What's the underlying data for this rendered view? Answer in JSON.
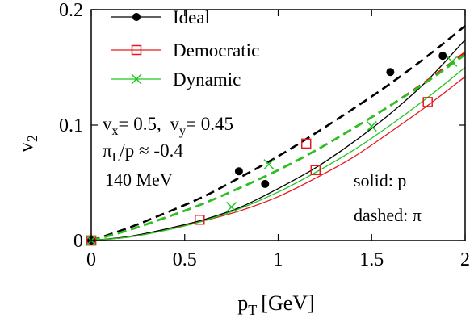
{
  "chart_data": {
    "type": "line",
    "xlabel_main": "p",
    "xlabel_sub": "T",
    "xlabel_unit": "[GeV]",
    "ylabel_main": "v",
    "ylabel_sub": "2",
    "xlim": [
      0,
      2
    ],
    "ylim": [
      0,
      0.2
    ],
    "x_ticks": [
      {
        "value": 0,
        "label": "0"
      },
      {
        "value": 0.5,
        "label": "0.5"
      },
      {
        "value": 1,
        "label": "1"
      },
      {
        "value": 1.5,
        "label": "1.5"
      },
      {
        "value": 2,
        "label": "2"
      }
    ],
    "y_ticks": [
      {
        "value": 0,
        "label": "0"
      },
      {
        "value": 0.1,
        "label": "0.1"
      },
      {
        "value": 0.2,
        "label": "0.2"
      }
    ],
    "legend": [
      {
        "label": "Ideal",
        "color": "#000000",
        "marker": "filled-circle"
      },
      {
        "label": "Democratic",
        "color": "#e8191e",
        "marker": "open-square"
      },
      {
        "label": "Dynamic",
        "color": "#1fc81f",
        "marker": "cross"
      }
    ],
    "annotations": {
      "line1a_main": "v",
      "line1a_sub": "x",
      "line1a_rest": "= 0.5, ",
      "line1b_main": "v",
      "line1b_sub": "y",
      "line1b_rest": "= 0.45",
      "line2_main": "π",
      "line2_sub": "L",
      "line2_rest": "/p ≈ -0.4",
      "line3": "140 MeV",
      "solid": "solid: p",
      "dashed": "dashed: π"
    },
    "series": [
      {
        "color": "#000000",
        "style": "solid",
        "marker": "filled-circle",
        "x": [
          0,
          0.2,
          0.4,
          0.6,
          0.8,
          1.0,
          1.2,
          1.4,
          1.6,
          1.8,
          2.0
        ],
        "y": [
          0,
          0.0035,
          0.01,
          0.018,
          0.029,
          0.045,
          0.063,
          0.085,
          0.11,
          0.139,
          0.174
        ],
        "points_x": [
          0,
          0.93,
          1.6,
          1.88
        ],
        "points_y": [
          0,
          0.049,
          0.146,
          0.16
        ]
      },
      {
        "color": "#e8191e",
        "style": "solid",
        "marker": "open-square",
        "x": [
          0,
          0.2,
          0.4,
          0.6,
          0.8,
          1.0,
          1.2,
          1.4,
          1.6,
          1.8,
          2.0
        ],
        "y": [
          0,
          0.003,
          0.009,
          0.017,
          0.026,
          0.038,
          0.054,
          0.072,
          0.094,
          0.117,
          0.142
        ],
        "points_x": [
          0,
          0.58,
          1.2,
          1.8
        ],
        "points_y": [
          0,
          0.018,
          0.061,
          0.12
        ]
      },
      {
        "color": "#1fc81f",
        "style": "solid",
        "marker": "cross",
        "x": [
          0,
          0.2,
          0.4,
          0.6,
          0.8,
          1.0,
          1.2,
          1.4,
          1.6,
          1.8,
          2.0
        ],
        "y": [
          0,
          0.003,
          0.009,
          0.017,
          0.028,
          0.042,
          0.059,
          0.078,
          0.1,
          0.124,
          0.15
        ],
        "points_x": [
          0,
          0.75,
          1.5
        ],
        "points_y": [
          0,
          0.029,
          0.099
        ]
      },
      {
        "color": "#000000",
        "style": "dashed",
        "marker": "filled-circle",
        "x": [
          0,
          0.2,
          0.4,
          0.6,
          0.8,
          1.0,
          1.2,
          1.4,
          1.6,
          1.8,
          2.0
        ],
        "y": [
          0,
          0.011,
          0.024,
          0.038,
          0.055,
          0.073,
          0.093,
          0.114,
          0.136,
          0.16,
          0.186
        ],
        "points_x": [
          0,
          0.79
        ],
        "points_y": [
          0,
          0.06
        ]
      },
      {
        "color": "#e8191e",
        "style": "dashed",
        "marker": "open-square",
        "x": [
          0,
          0.2,
          0.4,
          0.6,
          0.8,
          1.0,
          1.2,
          1.4,
          1.6,
          1.8,
          2.0
        ],
        "y": [
          0,
          0.009,
          0.02,
          0.032,
          0.046,
          0.061,
          0.078,
          0.097,
          0.117,
          0.139,
          0.163
        ],
        "points_x": [
          0,
          1.15
        ],
        "points_y": [
          0,
          0.084
        ]
      },
      {
        "color": "#1fc81f",
        "style": "dashed",
        "marker": "cross",
        "x": [
          0,
          0.2,
          0.4,
          0.6,
          0.8,
          1.0,
          1.2,
          1.4,
          1.6,
          1.8,
          2.0
        ],
        "y": [
          0,
          0.009,
          0.02,
          0.032,
          0.046,
          0.061,
          0.078,
          0.097,
          0.117,
          0.138,
          0.161
        ],
        "points_x": [
          0,
          0.95,
          1.93
        ],
        "points_y": [
          0,
          0.066,
          0.155
        ]
      }
    ]
  }
}
